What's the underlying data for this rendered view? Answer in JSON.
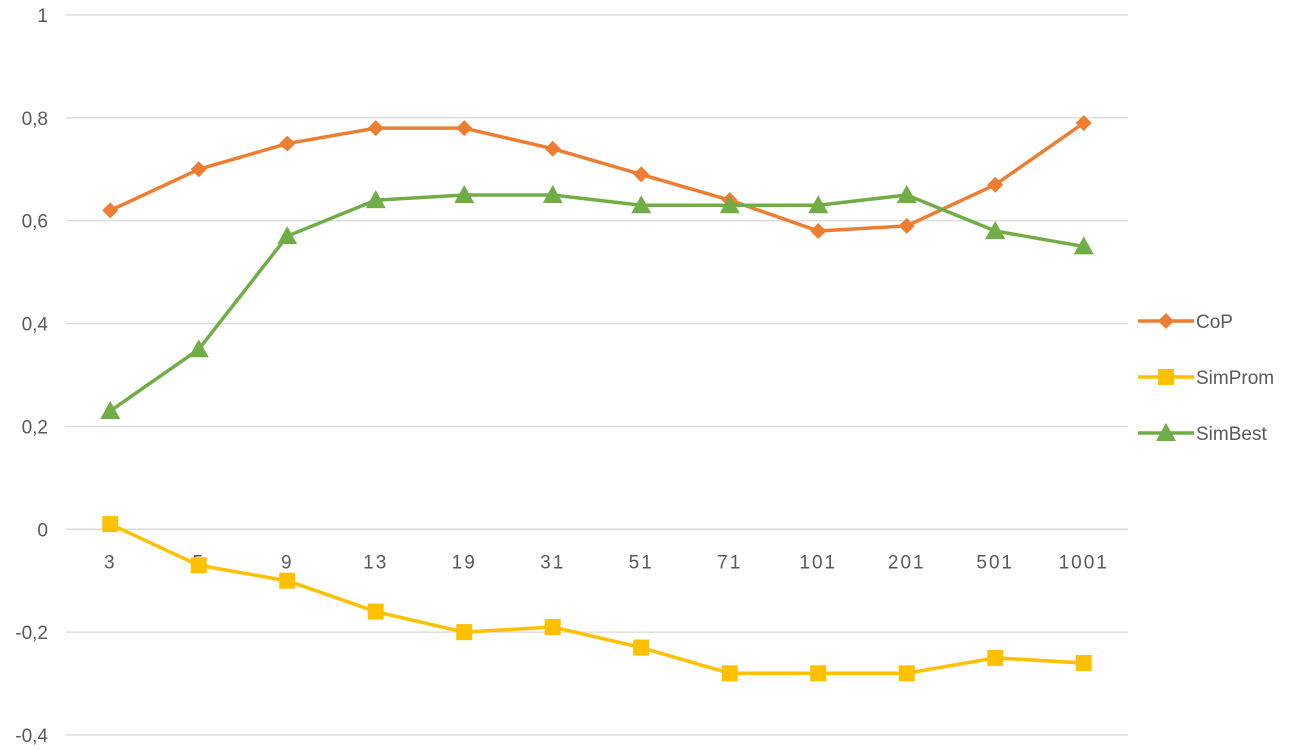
{
  "chart_data": {
    "type": "line",
    "categories": [
      "3",
      "5",
      "9",
      "13",
      "19",
      "31",
      "51",
      "71",
      "101",
      "201",
      "501",
      "1001"
    ],
    "ylim": [
      -0.4,
      1
    ],
    "y_ticks": [
      {
        "value": 1,
        "label": "1"
      },
      {
        "value": 0.8,
        "label": "0,8"
      },
      {
        "value": 0.6,
        "label": "0,6"
      },
      {
        "value": 0.4,
        "label": "0,4"
      },
      {
        "value": 0.2,
        "label": "0,2"
      },
      {
        "value": 0,
        "label": "0"
      },
      {
        "value": -0.2,
        "label": "-0,2"
      },
      {
        "value": -0.4,
        "label": "-0,4"
      }
    ],
    "grid": true,
    "legend_position": "right",
    "series": [
      {
        "name": "CoP",
        "color": "#ED7D31",
        "marker": "diamond",
        "values": [
          0.62,
          0.7,
          0.75,
          0.78,
          0.78,
          0.74,
          0.69,
          0.64,
          0.58,
          0.59,
          0.67,
          0.79
        ]
      },
      {
        "name": "SimProm",
        "color": "#FFC000",
        "marker": "square",
        "values": [
          0.01,
          -0.07,
          -0.1,
          -0.16,
          -0.2,
          -0.19,
          -0.23,
          -0.28,
          -0.28,
          -0.28,
          -0.25,
          -0.26
        ]
      },
      {
        "name": "SimBest",
        "color": "#70AD47",
        "marker": "triangle",
        "values": [
          0.23,
          0.35,
          0.57,
          0.64,
          0.65,
          0.65,
          0.63,
          0.63,
          0.63,
          0.65,
          0.58,
          0.55
        ]
      }
    ]
  }
}
